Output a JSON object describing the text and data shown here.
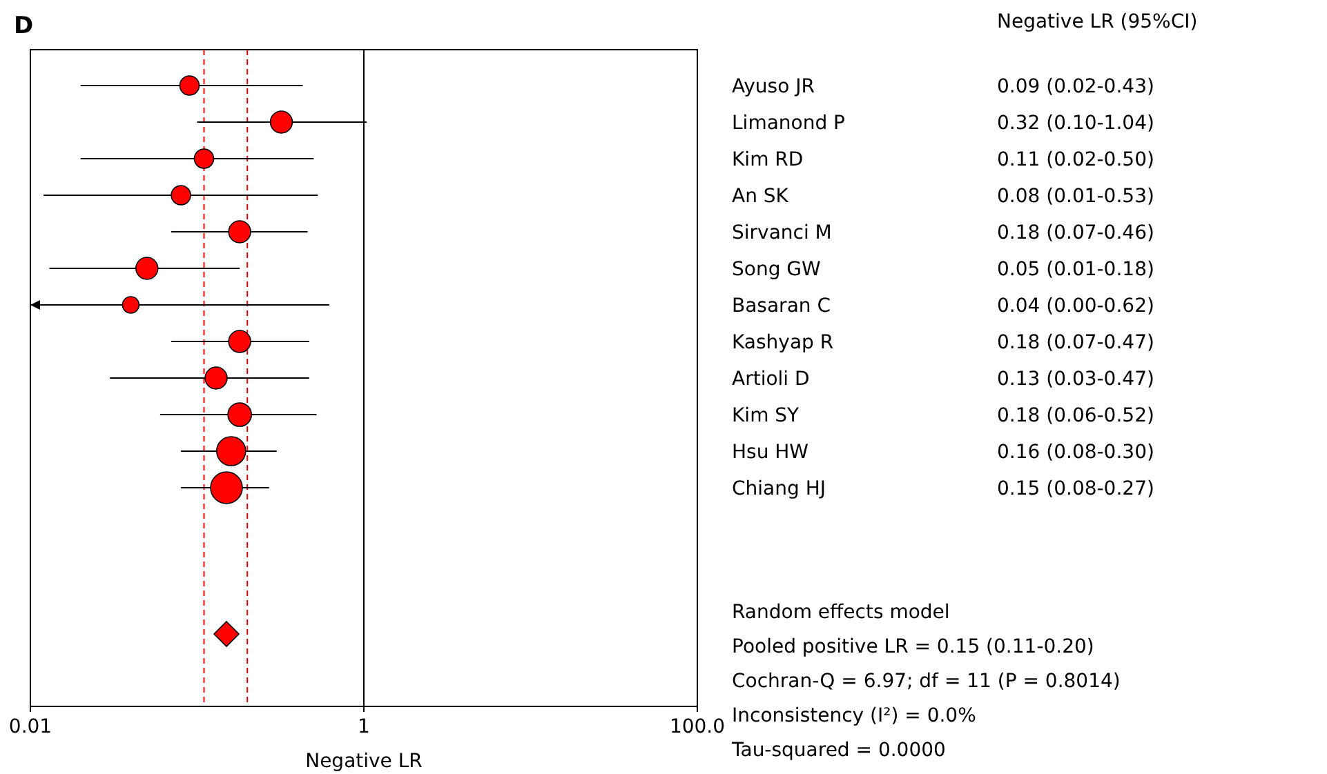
{
  "chart_data": {
    "type": "bubble",
    "orientation": "horizontal",
    "title": "D",
    "xlabel": "Negative LR",
    "log": "x",
    "xlim": [
      0.01,
      100
    ],
    "xticks": [
      0.01,
      1,
      {
        "value": 100,
        "label": "100.0"
      }
    ],
    "grid": false,
    "categories": [
      "Ayuso JR",
      "Limanond P",
      "Kim RD",
      "An SK",
      "Sirvanci M",
      "Song GW",
      "Basaran C",
      "Kashyap R",
      "Artioli D",
      "Kim SY",
      "Hsu HW",
      "Chiang HJ",
      null,
      null,
      null,
      null
    ],
    "series": [
      {
        "color": "#ff0000",
        "marker": "circle",
        "values": [
          0.09,
          0.32,
          0.11,
          0.08,
          0.18,
          0.05,
          0.04,
          0.18,
          0.13,
          0.18,
          0.16,
          0.15,
          null,
          null,
          null,
          null
        ],
        "sizes": [
          0.37,
          0.48,
          0.37,
          0.37,
          0.48,
          0.48,
          0.27,
          0.48,
          0.48,
          0.55,
          0.83,
          1,
          null,
          null,
          null,
          null
        ],
        "errors": [
          [
            0.02,
            0.43
          ],
          [
            0.1,
            1.04
          ],
          [
            0.02,
            0.5
          ],
          [
            0.012,
            0.53
          ],
          [
            0.07,
            0.46
          ],
          [
            0.013,
            0.18
          ],
          [
            0.01,
            0.62
          ],
          [
            0.07,
            0.47
          ],
          [
            0.03,
            0.47
          ],
          [
            0.06,
            0.52
          ],
          [
            0.08,
            0.3
          ],
          [
            0.08,
            0.27
          ],
          null,
          null,
          null,
          null
        ],
        "value_labels": [
          "0.09 (0.02-0.43)",
          "0.32 (0.10-1.04)",
          "0.11 (0.02-0.50)",
          "0.08 (0.01-0.53)",
          "0.18 (0.07-0.46)",
          "0.05 (0.01-0.18)",
          "0.04 (0.00-0.62)",
          "0.18 (0.07-0.47)",
          "0.13 (0.03-0.47)",
          "0.18 (0.06-0.52)",
          "0.16 (0.08-0.30)",
          "0.15 (0.08-0.27)",
          null,
          null,
          null,
          null
        ]
      },
      {
        "type": "scatter",
        "color": "#ff0000",
        "marker": "diamond",
        "values": [
          null,
          null,
          null,
          null,
          null,
          null,
          null,
          null,
          null,
          null,
          null,
          null,
          null,
          null,
          null,
          0.15
        ]
      }
    ],
    "ref_lines": [
      {
        "axis": "x",
        "value": 1,
        "color": "#000000",
        "line_style": "solid"
      },
      {
        "axis": "x",
        "value": 0.11,
        "color": "#ff0000",
        "line_style": "dashed"
      },
      {
        "axis": "x",
        "value": 0.2,
        "color": "#ff0000",
        "line_style": "dashed"
      }
    ],
    "annotations": [
      "Negative LR (95%CI)",
      "Random effects model",
      "Pooled positive LR = 0.15 (0.11-0.20)",
      "Cochran-Q = 6.97; df = 11 (P = 0.8014)",
      "Inconsistency (I²) = 0.0%",
      "Tau-squared = 0.0000"
    ]
  }
}
